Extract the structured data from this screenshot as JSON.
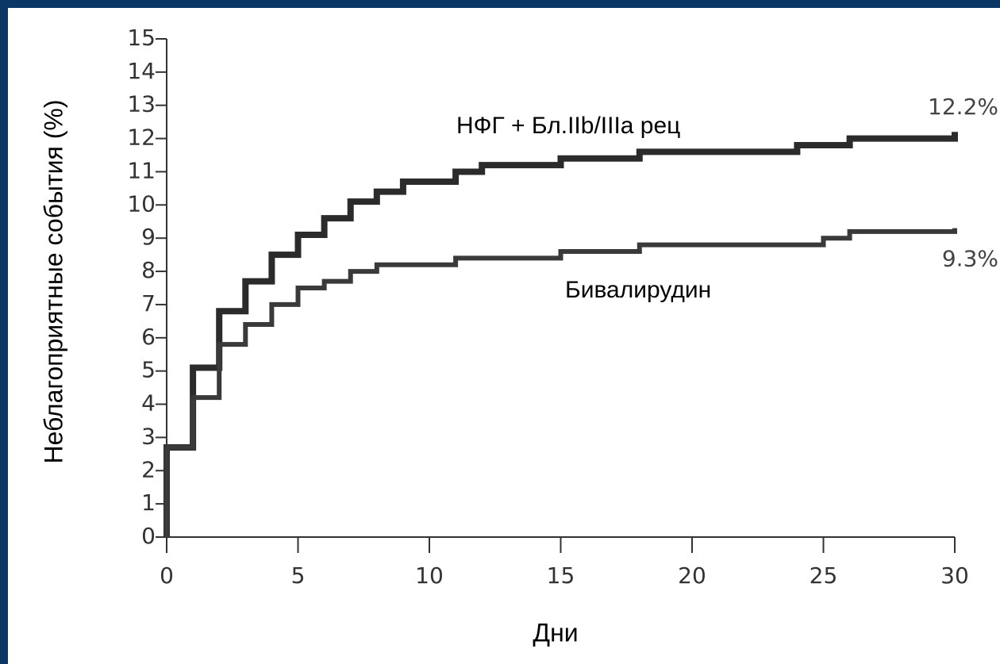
{
  "chart_data": {
    "type": "step",
    "x_label": "Дни",
    "y_label": "Неблагоприятные события (%)",
    "xlim": [
      0,
      30
    ],
    "xticks": [
      0,
      5,
      10,
      15,
      20,
      25,
      30
    ],
    "ylim": [
      0,
      15
    ],
    "yticks": [
      0,
      1,
      2,
      3,
      4,
      5,
      6,
      7,
      8,
      9,
      10,
      11,
      12,
      13,
      14,
      15
    ],
    "series": [
      {
        "name": "НФГ + Бл.IIb/IIIa рец",
        "color": "#2b2b2b",
        "x": [
          0,
          0,
          1,
          2,
          3,
          4,
          5,
          6,
          7,
          8,
          9,
          11,
          12,
          15,
          18,
          24,
          26,
          30
        ],
        "values": [
          0,
          2.7,
          5.1,
          6.8,
          7.7,
          8.5,
          9.1,
          9.6,
          10.1,
          10.4,
          10.7,
          11.0,
          11.2,
          11.4,
          11.6,
          11.8,
          12.0,
          12.2
        ],
        "value_labels": [
          null,
          null,
          null,
          null,
          null,
          null,
          null,
          null,
          null,
          null,
          null,
          null,
          null,
          null,
          null,
          null,
          null,
          "12.2%"
        ]
      },
      {
        "name": "Бивалирудин",
        "color": "#3a3a3a",
        "x": [
          0,
          0,
          1,
          2,
          3,
          4,
          5,
          6,
          7,
          8,
          11,
          15,
          18,
          25,
          26,
          30
        ],
        "values": [
          0,
          2.7,
          4.2,
          5.8,
          6.4,
          7.0,
          7.5,
          7.7,
          8.0,
          8.2,
          8.4,
          8.6,
          8.8,
          9.0,
          9.2,
          9.3
        ],
        "value_labels": [
          null,
          null,
          null,
          null,
          null,
          null,
          null,
          null,
          null,
          null,
          null,
          null,
          null,
          null,
          null,
          "9.3%"
        ]
      }
    ]
  }
}
